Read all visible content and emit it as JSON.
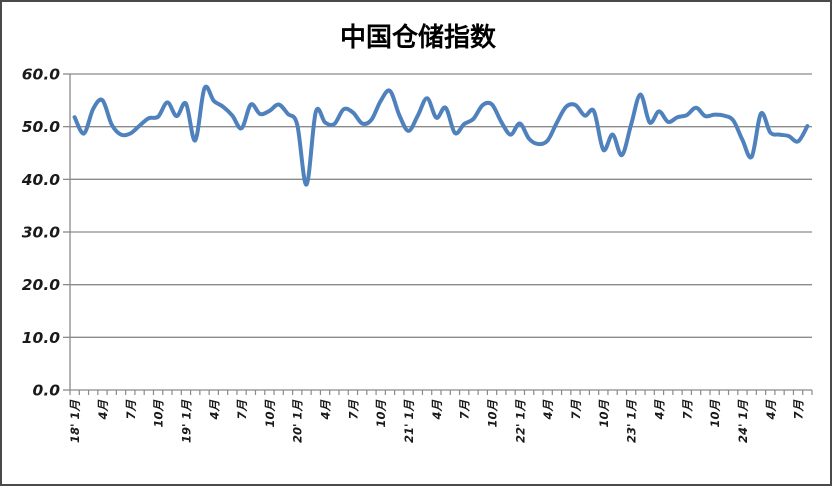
{
  "chart_data": {
    "type": "line",
    "title": "中国仓储指数",
    "x_monthly_from": "2018-01",
    "x_monthly_to": "2024-08",
    "x_tick_labels": [
      "18' 1月",
      "4月",
      "7月",
      "10月",
      "19' 1月",
      "4月",
      "7月",
      "10月",
      "20' 1月",
      "4月",
      "7月",
      "10月",
      "21' 1月",
      "4月",
      "7月",
      "10月",
      "22' 1月",
      "4月",
      "7月",
      "10月",
      "23' 1月",
      "4月",
      "7月",
      "10月",
      "24' 1月",
      "4月",
      "7月"
    ],
    "x_label_every_n_months": 3,
    "y_tick_labels": [
      "0.0",
      "10.0",
      "20.0",
      "30.0",
      "40.0",
      "50.0",
      "60.0"
    ],
    "ylim": [
      0,
      60
    ],
    "y_tick_step": 10,
    "grid": true,
    "legend_position": "none",
    "series": [
      {
        "name": "中国仓储指数",
        "values": [
          51.8,
          48.7,
          53.4,
          55.0,
          50.4,
          48.5,
          48.7,
          50.2,
          51.6,
          51.9,
          54.6,
          52.0,
          54.4,
          47.4,
          57.3,
          54.9,
          53.8,
          52.1,
          49.7,
          54.2,
          52.4,
          53.0,
          54.2,
          52.4,
          50.4,
          39.0,
          52.8,
          50.8,
          50.5,
          53.3,
          52.7,
          50.6,
          51.3,
          54.9,
          56.8,
          52.2,
          49.2,
          52.1,
          55.4,
          51.7,
          53.6,
          48.8,
          50.5,
          51.5,
          54.1,
          54.2,
          50.9,
          48.5,
          50.6,
          47.7,
          46.7,
          47.4,
          50.8,
          53.8,
          54.1,
          52.1,
          52.9,
          45.6,
          48.5,
          44.6,
          50.4,
          56.1,
          50.8,
          52.9,
          50.9,
          51.8,
          52.2,
          53.6,
          52.0,
          52.3,
          52.1,
          51.2,
          47.5,
          44.3,
          52.5,
          48.9,
          48.5,
          48.2,
          47.2,
          50.1
        ]
      }
    ],
    "colors": {
      "line": "#4F81BD",
      "grid": "#8a8a8a",
      "axis": "#8a8a8a",
      "text": "#000000",
      "border": "#4a4a4a",
      "background": "#FFFFFF"
    }
  }
}
